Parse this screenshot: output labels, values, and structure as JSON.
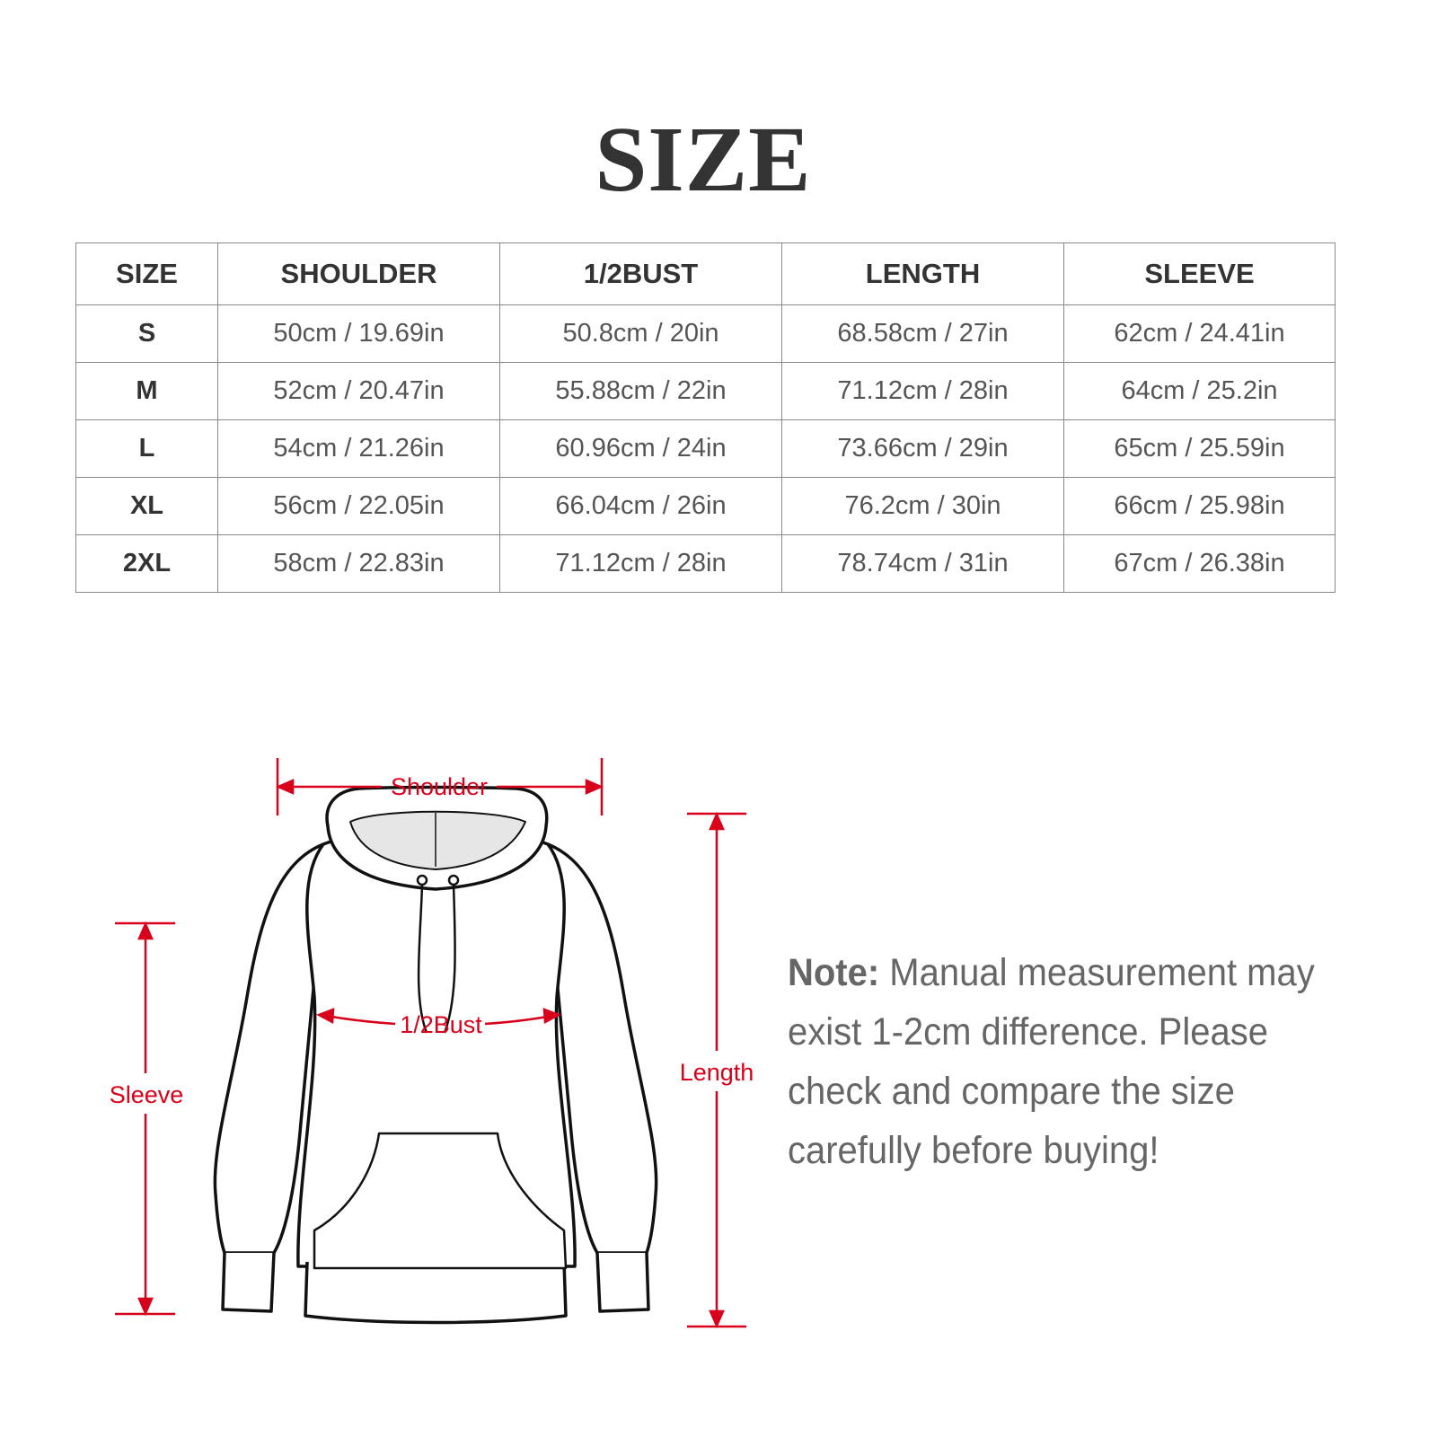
{
  "title": "SIZE",
  "table": {
    "headers": [
      "SIZE",
      "SHOULDER",
      "1/2BUST",
      "LENGTH",
      "SLEEVE"
    ],
    "rows": [
      [
        "S",
        "50cm / 19.69in",
        "50.8cm / 20in",
        "68.58cm / 27in",
        "62cm / 24.41in"
      ],
      [
        "M",
        "52cm / 20.47in",
        "55.88cm / 22in",
        "71.12cm / 28in",
        "64cm / 25.2in"
      ],
      [
        "L",
        "54cm / 21.26in",
        "60.96cm / 24in",
        "73.66cm / 29in",
        "65cm / 25.59in"
      ],
      [
        "XL",
        "56cm / 22.05in",
        "66.04cm / 26in",
        "76.2cm / 30in",
        "66cm / 25.98in"
      ],
      [
        "2XL",
        "58cm / 22.83in",
        "71.12cm / 28in",
        "78.74cm / 31in",
        "67cm / 26.38in"
      ]
    ]
  },
  "diagram": {
    "labels": {
      "shoulder": "Shoulder",
      "bust": "1/2Bust",
      "length": "Length",
      "sleeve": "Sleeve"
    },
    "annotation_color": "#d9001b"
  },
  "note": {
    "label": "Note:",
    "text": " Manual measurement may exist 1-2cm difference. Please check and compare the size carefully before buying!"
  }
}
